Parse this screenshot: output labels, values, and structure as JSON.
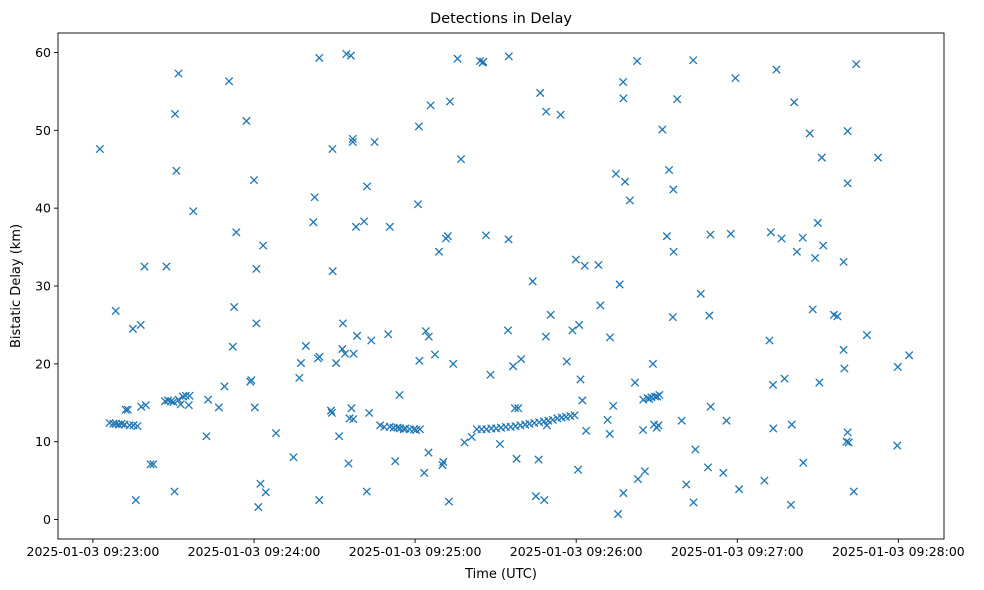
{
  "chart_data": {
    "type": "scatter",
    "title": "Detections in Delay",
    "xlabel": "Time (UTC)",
    "ylabel": "Bistatic Delay (km)",
    "xlim": [
      "2025-01-03 09:22:47",
      "2025-01-03 09:28:17"
    ],
    "ylim": [
      -2.5,
      62.5
    ],
    "x_ticks": [
      "2025-01-03 09:23:00",
      "2025-01-03 09:24:00",
      "2025-01-03 09:25:00",
      "2025-01-03 09:26:00",
      "2025-01-03 09:27:00",
      "2025-01-03 09:28:00"
    ],
    "y_ticks": [
      0,
      10,
      20,
      30,
      40,
      50,
      60
    ],
    "grid": false,
    "marker": "x",
    "color": "#1f77b4",
    "series": [
      {
        "points": [
          [
            "09:23:02.6",
            47.6
          ],
          [
            "09:23:08.5",
            26.8
          ],
          [
            "09:23:14.9",
            24.5
          ],
          [
            "09:23:17.8",
            25.0
          ],
          [
            "09:23:19.2",
            32.5
          ],
          [
            "09:23:27.4",
            32.5
          ],
          [
            "09:23:30.6",
            52.1
          ],
          [
            "09:23:31.1",
            44.8
          ],
          [
            "09:23:31.9",
            57.3
          ],
          [
            "09:23:37.4",
            39.6
          ],
          [
            "09:23:50.7",
            56.3
          ],
          [
            "09:23:53.4",
            36.9
          ],
          [
            "09:23:52.6",
            27.3
          ],
          [
            "09:23:57.2",
            51.2
          ],
          [
            "09:24:00.0",
            43.6
          ],
          [
            "09:24:00.9",
            32.2
          ],
          [
            "09:24:03.4",
            35.2
          ],
          [
            "09:24:22.6",
            41.4
          ],
          [
            "09:24:22.1",
            38.2
          ],
          [
            "09:24:23.8",
            20.7
          ],
          [
            "09:24:24.3",
            59.3
          ],
          [
            "09:24:34.4",
            59.8
          ],
          [
            "09:24:36.1",
            59.6
          ],
          [
            "09:24:29.2",
            47.6
          ],
          [
            "09:24:29.3",
            31.9
          ],
          [
            "09:24:36.8",
            48.5
          ],
          [
            "09:24:36.8",
            48.9
          ],
          [
            "09:24:38.0",
            37.6
          ],
          [
            "09:24:41.0",
            38.3
          ],
          [
            "09:24:42.1",
            42.8
          ],
          [
            "09:24:44.9",
            48.5
          ],
          [
            "09:24:50.6",
            37.6
          ],
          [
            "09:25:01.4",
            50.5
          ],
          [
            "09:25:01.1",
            40.5
          ],
          [
            "09:25:05.8",
            53.2
          ],
          [
            "09:25:13.0",
            53.7
          ],
          [
            "09:25:15.8",
            59.2
          ],
          [
            "09:25:17.1",
            46.3
          ],
          [
            "09:25:24.2",
            58.9
          ],
          [
            "09:25:25.1",
            58.7
          ],
          [
            "09:25:25.4",
            58.8
          ],
          [
            "09:25:26.4",
            36.5
          ],
          [
            "09:25:34.9",
            59.5
          ],
          [
            "09:25:34.8",
            36.0
          ],
          [
            "09:25:46.6",
            54.8
          ],
          [
            "09:25:48.8",
            52.4
          ],
          [
            "09:25:54.2",
            52.0
          ],
          [
            "09:25:59.9",
            33.4
          ],
          [
            "09:26:14.8",
            44.4
          ],
          [
            "09:26:17.5",
            56.2
          ],
          [
            "09:26:17.6",
            54.1
          ],
          [
            "09:26:18.2",
            43.4
          ],
          [
            "09:26:20.0",
            41.0
          ],
          [
            "09:26:22.7",
            58.9
          ],
          [
            "09:26:32.1",
            50.1
          ],
          [
            "09:26:36.2",
            42.4
          ],
          [
            "09:26:37.6",
            54.0
          ],
          [
            "09:26:43.6",
            59.0
          ],
          [
            "09:26:59.3",
            56.7
          ],
          [
            "09:27:14.6",
            57.8
          ],
          [
            "09:27:21.2",
            53.6
          ],
          [
            "09:27:27.0",
            49.6
          ],
          [
            "09:27:31.5",
            46.5
          ],
          [
            "09:27:41.1",
            49.9
          ],
          [
            "09:27:41.1",
            43.2
          ],
          [
            "09:27:44.3",
            58.5
          ],
          [
            "09:27:52.4",
            46.5
          ],
          [
            "09:27:59.8",
            19.6
          ],
          [
            "09:28:04.0",
            21.1
          ],
          [
            "09:27:59.6",
            9.5
          ],
          [
            "09:23:06.2",
            12.4
          ],
          [
            "09:23:07.6",
            12.3
          ],
          [
            "09:23:08.6",
            12.3
          ],
          [
            "09:23:09.6",
            12.2
          ],
          [
            "09:23:10.7",
            12.3
          ],
          [
            "09:23:11.8",
            12.2
          ],
          [
            "09:23:12.2",
            14.1
          ],
          [
            "09:23:13.0",
            14.1
          ],
          [
            "09:23:13.7",
            12.1
          ],
          [
            "09:23:15.1",
            12.1
          ],
          [
            "09:23:16.6",
            12.0
          ],
          [
            "09:23:16.0",
            2.5
          ],
          [
            "09:23:18.0",
            14.5
          ],
          [
            "09:23:19.7",
            14.7
          ],
          [
            "09:23:21.5",
            7.1
          ],
          [
            "09:23:22.5",
            7.1
          ],
          [
            "09:23:26.9",
            15.2
          ],
          [
            "09:23:28.0",
            15.3
          ],
          [
            "09:23:29.1",
            15.2
          ],
          [
            "09:23:30.0",
            15.1
          ],
          [
            "09:23:30.4",
            3.6
          ],
          [
            "09:23:31.9",
            15.4
          ],
          [
            "09:23:32.7",
            14.8
          ],
          [
            "09:23:33.5",
            15.8
          ],
          [
            "09:23:34.6",
            15.9
          ],
          [
            "09:23:35.7",
            14.7
          ],
          [
            "09:23:36.0",
            15.9
          ],
          [
            "09:23:42.3",
            10.7
          ],
          [
            "09:23:42.9",
            15.4
          ],
          [
            "09:23:46.9",
            14.4
          ],
          [
            "09:23:49.0",
            17.1
          ],
          [
            "09:23:52.1",
            22.2
          ],
          [
            "09:23:59.0",
            17.9
          ],
          [
            "09:23:58.6",
            17.7
          ],
          [
            "09:24:00.9",
            25.2
          ],
          [
            "09:24:00.3",
            14.4
          ],
          [
            "09:24:01.6",
            1.6
          ],
          [
            "09:24:02.4",
            4.6
          ],
          [
            "09:24:04.4",
            3.5
          ],
          [
            "09:24:08.2",
            11.1
          ],
          [
            "09:24:14.7",
            8.0
          ],
          [
            "09:24:16.9",
            18.2
          ],
          [
            "09:24:17.5",
            20.1
          ],
          [
            "09:24:19.3",
            22.3
          ],
          [
            "09:24:24.3",
            2.5
          ],
          [
            "09:24:24.4",
            20.9
          ],
          [
            "09:24:28.7",
            14.0
          ],
          [
            "09:24:29.0",
            13.7
          ],
          [
            "09:24:30.6",
            20.1
          ],
          [
            "09:24:31.7",
            10.7
          ],
          [
            "09:24:33.1",
            25.2
          ],
          [
            "09:24:32.9",
            21.9
          ],
          [
            "09:24:33.9",
            21.3
          ],
          [
            "09:24:35.2",
            7.2
          ],
          [
            "09:24:35.6",
            13.0
          ],
          [
            "09:24:37.0",
            12.9
          ],
          [
            "09:24:36.3",
            14.3
          ],
          [
            "09:24:37.1",
            21.3
          ],
          [
            "09:24:38.4",
            23.6
          ],
          [
            "09:24:43.7",
            23.0
          ],
          [
            "09:24:42.9",
            13.7
          ],
          [
            "09:24:42.0",
            3.6
          ],
          [
            "09:24:47.0",
            12.1
          ],
          [
            "09:24:48.5",
            11.9
          ],
          [
            "09:24:50.0",
            23.8
          ],
          [
            "09:24:50.6",
            11.9
          ],
          [
            "09:24:52.0",
            11.8
          ],
          [
            "09:24:52.6",
            7.5
          ],
          [
            "09:24:53.4",
            11.8
          ],
          [
            "09:24:54.4",
            11.7
          ],
          [
            "09:24:54.2",
            16.0
          ],
          [
            "09:24:55.8",
            11.6
          ],
          [
            "09:24:56.4",
            11.7
          ],
          [
            "09:24:58.0",
            11.6
          ],
          [
            "09:24:59.6",
            11.6
          ],
          [
            "09:25:00.4",
            11.5
          ],
          [
            "09:25:01.6",
            20.4
          ],
          [
            "09:25:01.8",
            11.6
          ],
          [
            "09:25:03.4",
            6.0
          ],
          [
            "09:25:04.0",
            24.2
          ],
          [
            "09:25:05.1",
            23.5
          ],
          [
            "09:25:05.0",
            8.6
          ],
          [
            "09:25:07.4",
            21.2
          ],
          [
            "09:25:08.9",
            34.4
          ],
          [
            "09:25:10.2",
            7.0
          ],
          [
            "09:25:10.5",
            7.4
          ],
          [
            "09:25:11.5",
            36.1
          ],
          [
            "09:25:12.2",
            36.4
          ],
          [
            "09:25:12.6",
            2.3
          ],
          [
            "09:25:14.2",
            20.0
          ],
          [
            "09:25:18.4",
            9.9
          ],
          [
            "09:25:21.1",
            10.6
          ],
          [
            "09:25:23.0",
            11.6
          ],
          [
            "09:25:24.8",
            11.6
          ],
          [
            "09:25:26.6",
            11.6
          ],
          [
            "09:25:28.4",
            11.7
          ],
          [
            "09:25:28.1",
            18.6
          ],
          [
            "09:25:30.2",
            11.7
          ],
          [
            "09:25:31.6",
            9.7
          ],
          [
            "09:25:32.0",
            11.8
          ],
          [
            "09:25:33.8",
            11.9
          ],
          [
            "09:25:34.6",
            24.3
          ],
          [
            "09:25:35.6",
            11.9
          ],
          [
            "09:25:36.5",
            19.7
          ],
          [
            "09:25:37.2",
            14.3
          ],
          [
            "09:25:37.4",
            12.0
          ],
          [
            "09:25:37.8",
            7.8
          ],
          [
            "09:25:38.4",
            14.3
          ],
          [
            "09:25:39.2",
            12.1
          ],
          [
            "09:25:39.5",
            20.6
          ],
          [
            "09:25:41.0",
            12.2
          ],
          [
            "09:25:42.6",
            12.3
          ],
          [
            "09:25:43.8",
            30.6
          ],
          [
            "09:25:44.4",
            12.4
          ],
          [
            "09:25:45.0",
            3.0
          ],
          [
            "09:25:46.2",
            12.5
          ],
          [
            "09:25:46.0",
            7.7
          ],
          [
            "09:25:48.0",
            12.6
          ],
          [
            "09:25:48.1",
            2.5
          ],
          [
            "09:25:48.7",
            23.5
          ],
          [
            "09:25:49.6",
            12.7
          ],
          [
            "09:25:50.5",
            26.3
          ],
          [
            "09:25:51.3",
            12.8
          ],
          [
            "09:25:49.1",
            12.1
          ],
          [
            "09:25:53.0",
            13.0
          ],
          [
            "09:25:54.6",
            13.1
          ],
          [
            "09:25:56.2",
            13.2
          ],
          [
            "09:25:56.5",
            20.3
          ],
          [
            "09:25:57.8",
            13.3
          ],
          [
            "09:25:58.6",
            24.3
          ],
          [
            "09:25:59.4",
            13.4
          ],
          [
            "09:26:00.7",
            6.4
          ],
          [
            "09:26:01.1",
            25.0
          ],
          [
            "09:26:01.6",
            18.0
          ],
          [
            "09:26:02.3",
            15.3
          ],
          [
            "09:26:03.7",
            11.4
          ],
          [
            "09:26:03.2",
            32.6
          ],
          [
            "09:26:09.0",
            27.5
          ],
          [
            "09:26:08.3",
            32.7
          ],
          [
            "09:26:11.7",
            12.8
          ],
          [
            "09:26:12.6",
            23.4
          ],
          [
            "09:26:12.5",
            11.0
          ],
          [
            "09:26:13.8",
            14.6
          ],
          [
            "09:26:15.6",
            0.7
          ],
          [
            "09:26:16.2",
            30.2
          ],
          [
            "09:26:17.6",
            3.4
          ],
          [
            "09:26:21.9",
            17.6
          ],
          [
            "09:26:23.0",
            5.2
          ],
          [
            "09:26:24.9",
            11.5
          ],
          [
            "09:26:25.0",
            15.4
          ],
          [
            "09:26:25.6",
            6.2
          ],
          [
            "09:26:26.6",
            15.6
          ],
          [
            "09:26:27.2",
            15.5
          ],
          [
            "09:26:28.0",
            15.7
          ],
          [
            "09:26:28.6",
            20.0
          ],
          [
            "09:26:29.0",
            12.2
          ],
          [
            "09:26:29.4",
            15.8
          ],
          [
            "09:26:30.0",
            11.8
          ],
          [
            "09:26:30.2",
            15.8
          ],
          [
            "09:26:30.6",
            12.1
          ],
          [
            "09:26:31.0",
            16.0
          ],
          [
            "09:26:33.8",
            36.4
          ],
          [
            "09:26:34.6",
            44.9
          ],
          [
            "09:26:36.0",
            26.0
          ],
          [
            "09:26:36.3",
            34.4
          ],
          [
            "09:26:39.3",
            12.7
          ],
          [
            "09:26:41.0",
            4.5
          ],
          [
            "09:26:43.7",
            2.2
          ],
          [
            "09:26:44.4",
            9.0
          ],
          [
            "09:26:46.4",
            29.0
          ],
          [
            "09:26:49.1",
            6.7
          ],
          [
            "09:26:49.6",
            26.2
          ],
          [
            "09:26:50.0",
            36.6
          ],
          [
            "09:26:50.1",
            14.5
          ],
          [
            "09:26:54.8",
            6.0
          ],
          [
            "09:26:56.0",
            12.7
          ],
          [
            "09:26:57.6",
            36.7
          ],
          [
            "09:27:00.7",
            3.9
          ],
          [
            "09:27:10.1",
            5.0
          ],
          [
            "09:27:12.0",
            23.0
          ],
          [
            "09:27:12.5",
            36.9
          ],
          [
            "09:27:13.4",
            11.7
          ],
          [
            "09:27:13.3",
            17.3
          ],
          [
            "09:27:16.5",
            36.1
          ],
          [
            "09:27:17.6",
            18.1
          ],
          [
            "09:27:20.3",
            12.2
          ],
          [
            "09:27:20.0",
            1.9
          ],
          [
            "09:27:22.2",
            34.4
          ],
          [
            "09:27:24.4",
            36.2
          ],
          [
            "09:27:24.6",
            7.3
          ],
          [
            "09:27:28.1",
            27.0
          ],
          [
            "09:27:29.0",
            33.6
          ],
          [
            "09:27:30.0",
            38.1
          ],
          [
            "09:27:30.6",
            17.6
          ],
          [
            "09:27:32.0",
            35.2
          ],
          [
            "09:27:36.0",
            26.3
          ],
          [
            "09:27:37.3",
            26.1
          ],
          [
            "09:27:39.6",
            33.1
          ],
          [
            "09:27:39.6",
            21.8
          ],
          [
            "09:27:39.9",
            19.4
          ],
          [
            "09:27:41.1",
            11.2
          ],
          [
            "09:27:40.7",
            10.0
          ],
          [
            "09:27:41.5",
            9.9
          ],
          [
            "09:27:43.4",
            3.6
          ],
          [
            "09:27:48.3",
            23.7
          ]
        ]
      }
    ]
  }
}
